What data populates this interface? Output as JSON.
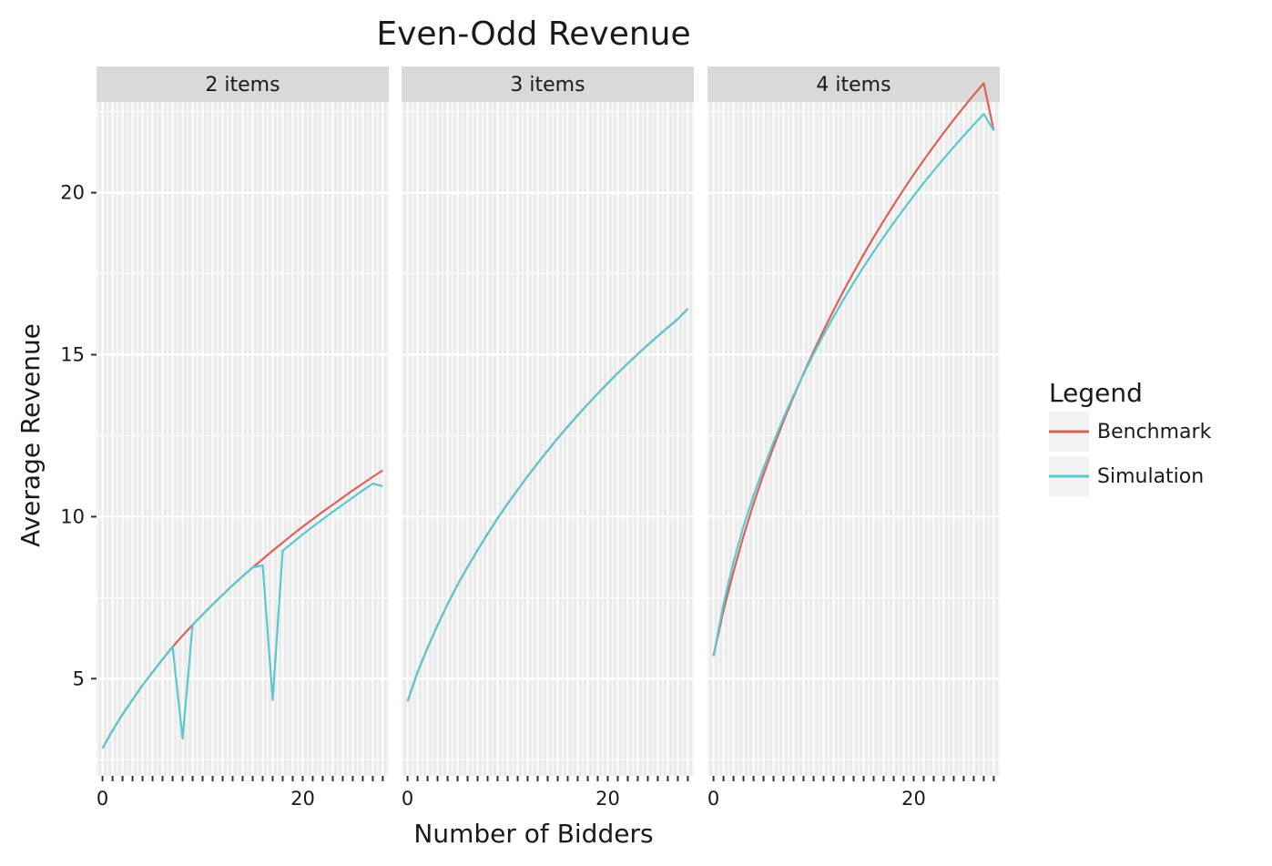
{
  "chart_data": {
    "type": "line",
    "title": "Even-Odd Revenue",
    "xlabel": "Number of Bidders",
    "ylabel": "Average Revenue",
    "xlim": [
      -0.6,
      28.6
    ],
    "ylim": [
      2.0,
      22.8
    ],
    "x_ticks": [
      0,
      20
    ],
    "x_tick_labels": [
      "0",
      "20"
    ],
    "y_ticks": [
      5,
      10,
      15,
      20
    ],
    "y_tick_labels": [
      "5",
      "10",
      "15",
      "20"
    ],
    "grid": true,
    "legend": {
      "title": "Legend",
      "position": "right",
      "entries": [
        {
          "name": "Benchmark",
          "color": "#D9625A"
        },
        {
          "name": "Simulation",
          "color": "#5BC8D0"
        }
      ]
    },
    "panels": [
      {
        "label": "2 items",
        "series": [
          {
            "name": "Benchmark",
            "color": "#D9625A",
            "x": [
              0,
              1,
              2,
              3,
              4,
              5,
              6,
              7,
              8,
              9,
              10,
              11,
              12,
              13,
              14,
              15,
              16,
              17,
              18,
              19,
              20,
              21,
              22,
              23,
              24,
              25,
              26,
              27,
              28
            ],
            "y": [
              2.85,
              3.4,
              3.9,
              4.35,
              4.8,
              5.2,
              5.6,
              5.98,
              6.33,
              6.66,
              6.98,
              7.29,
              7.59,
              7.88,
              8.16,
              8.43,
              8.69,
              8.95,
              9.2,
              9.45,
              9.69,
              9.92,
              10.15,
              10.37,
              10.59,
              10.81,
              11.02,
              11.23,
              11.43
            ]
          },
          {
            "name": "Simulation",
            "color": "#5BC8D0",
            "x": [
              0,
              1,
              2,
              3,
              4,
              5,
              6,
              7,
              8,
              9,
              10,
              11,
              12,
              13,
              14,
              15,
              16,
              17,
              18,
              19,
              20,
              21,
              22,
              23,
              24,
              25,
              26,
              27,
              28
            ],
            "y": [
              2.85,
              3.4,
              3.9,
              4.35,
              4.8,
              5.2,
              5.6,
              5.98,
              3.15,
              6.66,
              6.98,
              7.29,
              7.59,
              7.88,
              8.16,
              8.43,
              8.5,
              4.35,
              8.95,
              9.2,
              9.45,
              9.69,
              9.92,
              10.15,
              10.37,
              10.59,
              10.81,
              11.02,
              10.94
            ]
          }
        ]
      },
      {
        "label": "3 items",
        "series": [
          {
            "name": "Benchmark",
            "color": "#D9625A",
            "x": [
              0,
              1,
              2,
              3,
              4,
              5,
              6,
              7,
              8,
              9,
              10,
              11,
              12,
              13,
              14,
              15,
              16,
              17,
              18,
              19,
              20,
              21,
              22,
              23,
              24,
              25,
              26,
              27,
              28
            ],
            "y": [
              4.3,
              5.2,
              5.95,
              6.65,
              7.3,
              7.9,
              8.45,
              8.97,
              9.47,
              9.95,
              10.4,
              10.83,
              11.25,
              11.65,
              12.04,
              12.42,
              12.78,
              13.13,
              13.47,
              13.8,
              14.12,
              14.43,
              14.73,
              15.02,
              15.3,
              15.57,
              15.84,
              16.1,
              16.42
            ]
          },
          {
            "name": "Simulation",
            "color": "#5BC8D0",
            "x": [
              0,
              1,
              2,
              3,
              4,
              5,
              6,
              7,
              8,
              9,
              10,
              11,
              12,
              13,
              14,
              15,
              16,
              17,
              18,
              19,
              20,
              21,
              22,
              23,
              24,
              25,
              26,
              27,
              28
            ],
            "y": [
              4.3,
              5.2,
              5.95,
              6.65,
              7.3,
              7.9,
              8.45,
              8.97,
              9.47,
              9.95,
              10.4,
              10.83,
              11.25,
              11.65,
              12.04,
              12.42,
              12.78,
              13.13,
              13.47,
              13.8,
              14.12,
              14.43,
              14.73,
              15.02,
              15.3,
              15.57,
              15.84,
              16.1,
              16.42
            ]
          }
        ]
      },
      {
        "label": "4 items",
        "series": [
          {
            "name": "Benchmark",
            "color": "#D9625A",
            "x": [
              0,
              1,
              2,
              3,
              4,
              5,
              6,
              7,
              8,
              9,
              10,
              11,
              12,
              13,
              14,
              15,
              16,
              17,
              18,
              19,
              20,
              21,
              22,
              23,
              24,
              25,
              26,
              27,
              28
            ],
            "y": [
              5.7,
              7.1,
              8.3,
              9.4,
              10.4,
              11.3,
              12.15,
              12.95,
              13.7,
              14.42,
              15.1,
              15.75,
              16.37,
              16.97,
              17.54,
              18.09,
              18.62,
              19.13,
              19.62,
              20.1,
              20.56,
              21.0,
              21.43,
              21.85,
              22.25,
              22.64,
              23.02,
              23.38,
              21.92
            ]
          },
          {
            "name": "Simulation",
            "color": "#5BC8D0",
            "x": [
              0,
              1,
              2,
              3,
              4,
              5,
              6,
              7,
              8,
              9,
              10,
              11,
              12,
              13,
              14,
              15,
              16,
              17,
              18,
              19,
              20,
              21,
              22,
              23,
              24,
              25,
              26,
              27,
              28
            ],
            "y": [
              5.7,
              7.3,
              8.6,
              9.7,
              10.65,
              11.5,
              12.3,
              13.05,
              13.75,
              14.4,
              15.02,
              15.61,
              16.17,
              16.71,
              17.22,
              17.71,
              18.18,
              18.63,
              19.07,
              19.49,
              19.9,
              20.3,
              20.68,
              21.05,
              21.41,
              21.76,
              22.1,
              22.43,
              21.92
            ]
          }
        ]
      }
    ]
  }
}
